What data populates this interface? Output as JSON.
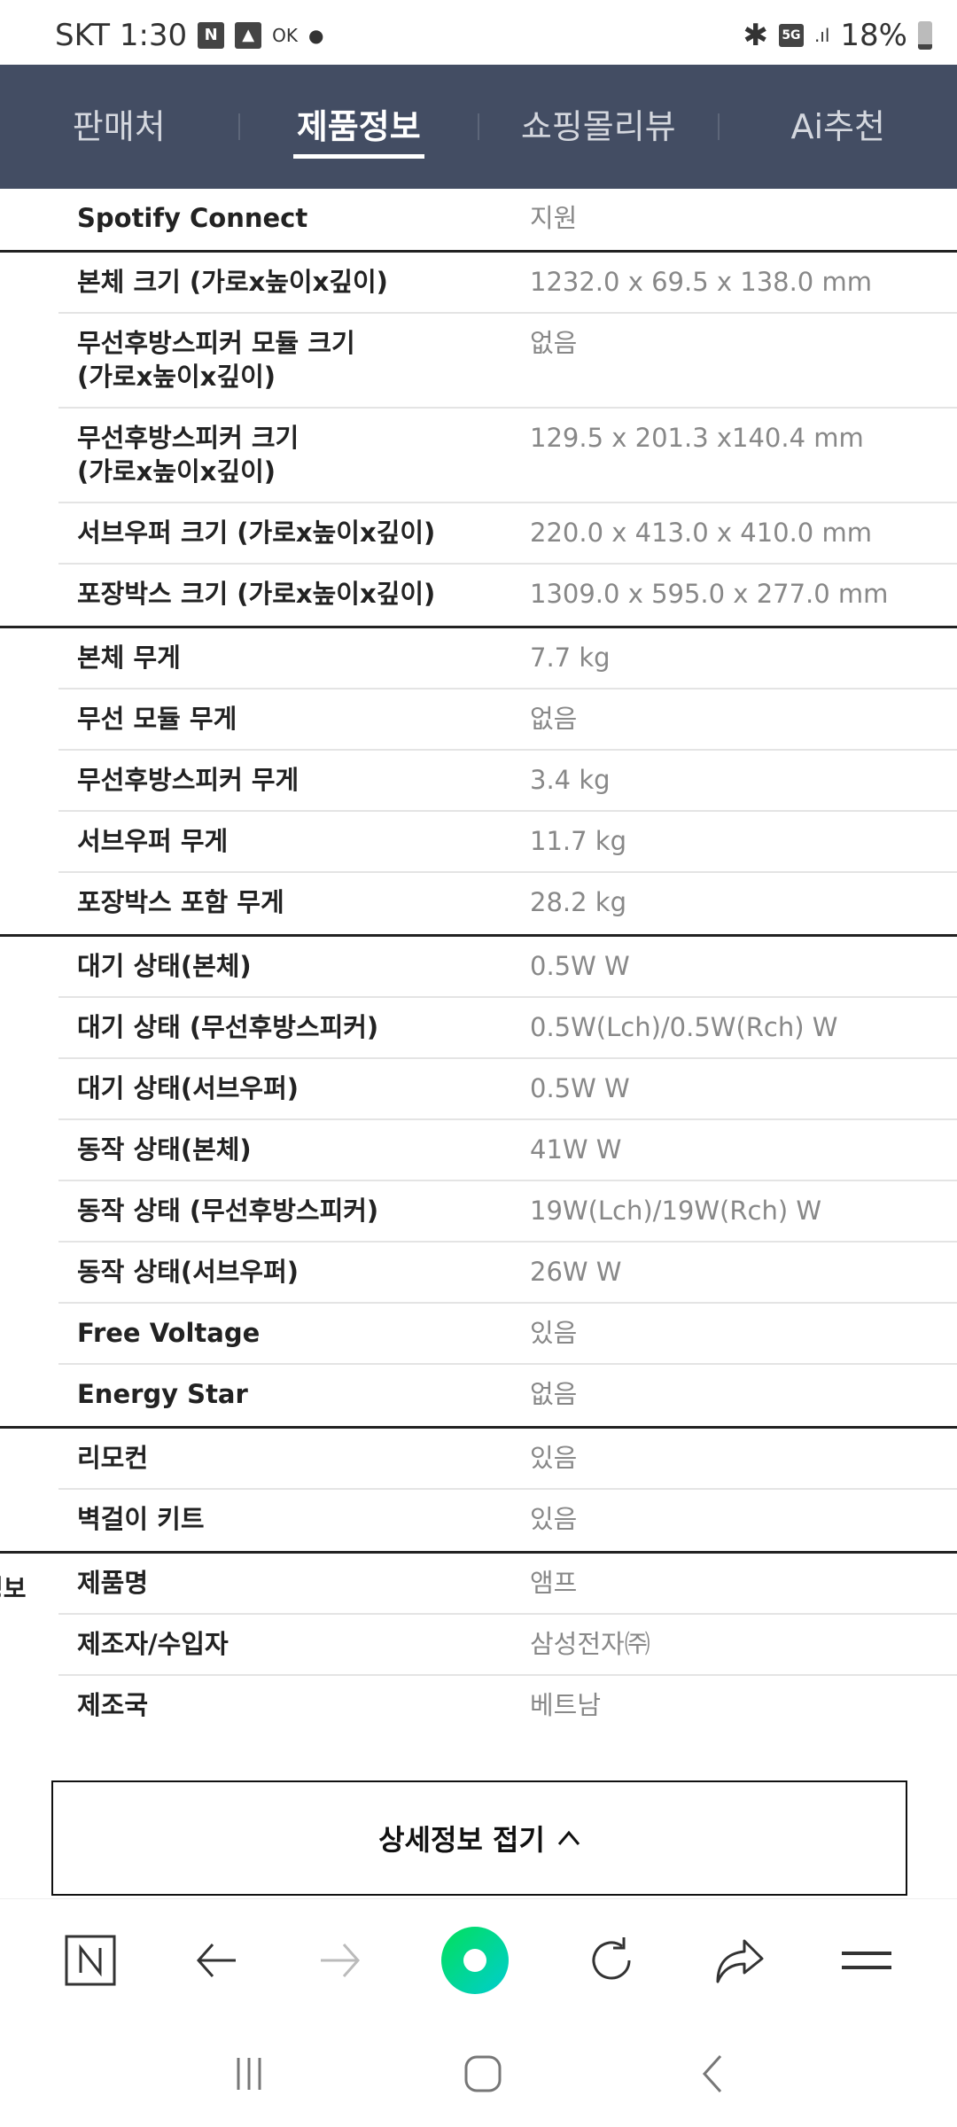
{
  "status_bar": {
    "carrier_time": "SKT 1:30",
    "n_icon": "N",
    "ok_text": "OK",
    "network": "5G",
    "battery": "18%"
  },
  "tabs": [
    {
      "label": "판매처",
      "active": false
    },
    {
      "label": "제품정보",
      "active": true
    },
    {
      "label": "쇼핑몰리뷰",
      "active": false
    },
    {
      "label": "Ai추천",
      "active": false
    }
  ],
  "spec_groups": [
    {
      "category": "",
      "rows": [
        {
          "label": "Spotify Connect",
          "value": "지원"
        }
      ]
    },
    {
      "category": "",
      "rows": [
        {
          "label": "본체 크기 (가로x높이x깊이)",
          "value": "1232.0 x 69.5 x 138.0 mm"
        },
        {
          "label": "무선후방스피커 모듈 크기\n(가로x높이x깊이)",
          "value": "없음"
        },
        {
          "label": "무선후방스피커 크기\n(가로x높이x깊이)",
          "value": "129.5 x 201.3 x140.4 mm"
        },
        {
          "label": "서브우퍼 크기 (가로x높이x깊이)",
          "value": "220.0 x 413.0 x 410.0 mm"
        },
        {
          "label": "포장박스 크기 (가로x높이x깊이)",
          "value": "1309.0 x 595.0 x 277.0 mm"
        }
      ]
    },
    {
      "category": "",
      "rows": [
        {
          "label": "본체 무게",
          "value": "7.7 kg"
        },
        {
          "label": "무선 모듈 무게",
          "value": "없음"
        },
        {
          "label": "무선후방스피커 무게",
          "value": "3.4 kg"
        },
        {
          "label": "서브우퍼 무게",
          "value": "11.7 kg"
        },
        {
          "label": "포장박스 포함 무게",
          "value": "28.2 kg"
        }
      ]
    },
    {
      "category": "",
      "rows": [
        {
          "label": "대기 상태(본체)",
          "value": "0.5W W"
        },
        {
          "label": "대기 상태 (무선후방스피커)",
          "value": "0.5W(Lch)/0.5W(Rch) W"
        },
        {
          "label": "대기 상태(서브우퍼)",
          "value": "0.5W W"
        },
        {
          "label": "동작 상태(본체)",
          "value": "41W W"
        },
        {
          "label": "동작 상태 (무선후방스피커)",
          "value": "19W(Lch)/19W(Rch) W"
        },
        {
          "label": "동작 상태(서브우퍼)",
          "value": "26W W"
        },
        {
          "label": "Free Voltage",
          "value": "있음"
        },
        {
          "label": "Energy Star",
          "value": "없음"
        }
      ]
    },
    {
      "category": "",
      "rows": [
        {
          "label": "리모컨",
          "value": "있음"
        },
        {
          "label": "벽걸이 키트",
          "value": "있음"
        }
      ]
    },
    {
      "category": "정보",
      "rows": [
        {
          "label": "제품명",
          "value": "앰프"
        },
        {
          "label": "제조자/수입자",
          "value": "삼성전자㈜"
        },
        {
          "label": "제조국",
          "value": "베트남"
        }
      ]
    }
  ],
  "fold_button": {
    "label": "상세정보 접기"
  },
  "colors": {
    "nav_bg": "#434d63",
    "naver_green": "#03c75a"
  }
}
